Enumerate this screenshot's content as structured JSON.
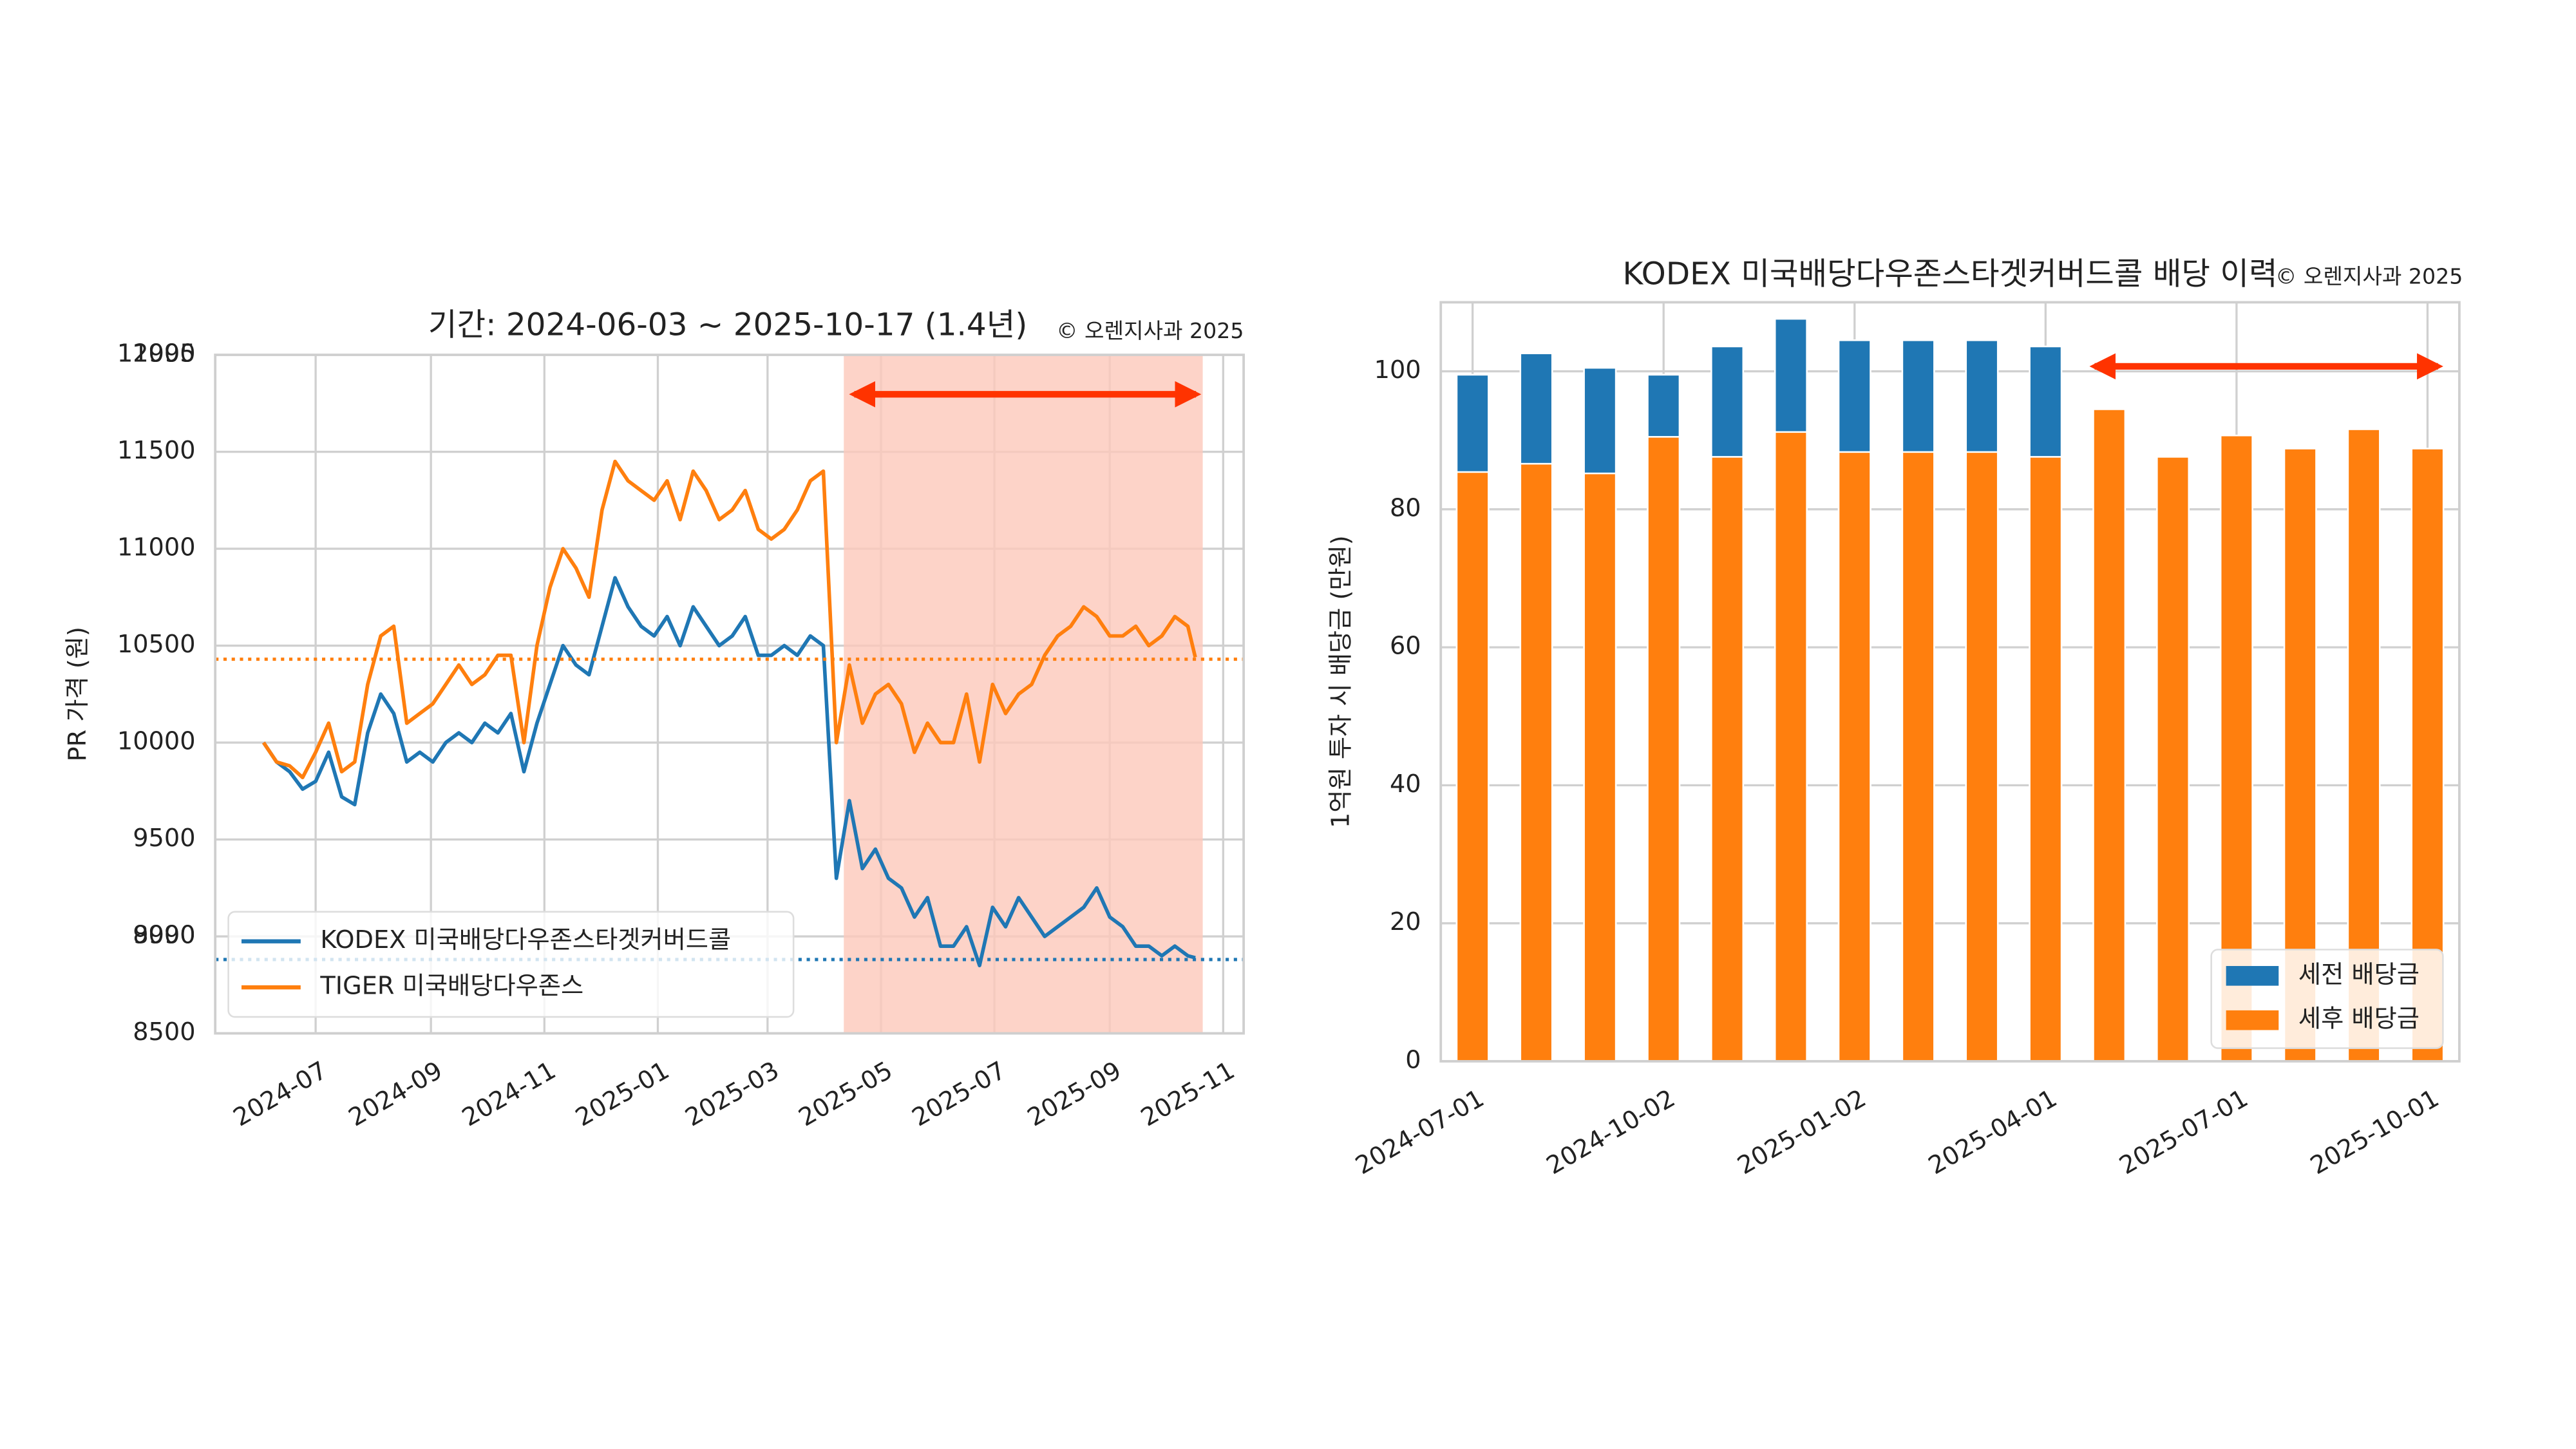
{
  "chart_data": [
    {
      "type": "line",
      "title": "기간: 2024-06-03 ~ 2025-10-17 (1.4년)",
      "annotation": "© 오렌지사과 2025",
      "ylabel": "PR 가격 (원)",
      "x": [
        "2024-06-03",
        "2024-06-10",
        "2024-06-17",
        "2024-06-24",
        "2024-07-01",
        "2024-07-08",
        "2024-07-15",
        "2024-07-22",
        "2024-07-29",
        "2024-08-05",
        "2024-08-12",
        "2024-08-19",
        "2024-08-26",
        "2024-09-02",
        "2024-09-09",
        "2024-09-16",
        "2024-09-23",
        "2024-09-30",
        "2024-10-07",
        "2024-10-14",
        "2024-10-21",
        "2024-10-28",
        "2024-11-04",
        "2024-11-11",
        "2024-11-18",
        "2024-11-25",
        "2024-12-02",
        "2024-12-09",
        "2024-12-16",
        "2024-12-23",
        "2024-12-30",
        "2025-01-06",
        "2025-01-13",
        "2025-01-20",
        "2025-01-27",
        "2025-02-03",
        "2025-02-10",
        "2025-02-17",
        "2025-02-24",
        "2025-03-03",
        "2025-03-10",
        "2025-03-17",
        "2025-03-24",
        "2025-03-31",
        "2025-04-07",
        "2025-04-14",
        "2025-04-21",
        "2025-04-28",
        "2025-05-05",
        "2025-05-12",
        "2025-05-19",
        "2025-05-26",
        "2025-06-02",
        "2025-06-09",
        "2025-06-16",
        "2025-06-23",
        "2025-06-30",
        "2025-07-07",
        "2025-07-14",
        "2025-07-21",
        "2025-07-28",
        "2025-08-04",
        "2025-08-11",
        "2025-08-18",
        "2025-08-25",
        "2025-09-01",
        "2025-09-08",
        "2025-09-15",
        "2025-09-22",
        "2025-09-29",
        "2025-10-06",
        "2025-10-13",
        "2025-10-17"
      ],
      "series": [
        {
          "name": "KODEX 미국배당다우존스타겟커버드콜",
          "color": "#1f77b4",
          "values": [
            10000,
            9900,
            9850,
            9760,
            9800,
            9950,
            9720,
            9680,
            10050,
            10250,
            10150,
            9900,
            9950,
            9900,
            10000,
            10050,
            10000,
            10100,
            10050,
            10150,
            9850,
            10100,
            10300,
            10500,
            10400,
            10350,
            10600,
            10850,
            10700,
            10600,
            10550,
            10650,
            10500,
            10700,
            10600,
            10500,
            10550,
            10650,
            10450,
            10450,
            10500,
            10450,
            10550,
            10500,
            9300,
            9700,
            9350,
            9450,
            9300,
            9250,
            9100,
            9200,
            8950,
            8950,
            9050,
            8850,
            9150,
            9050,
            9200,
            9100,
            9000,
            9050,
            9100,
            9150,
            9250,
            9100,
            9050,
            8950,
            8950,
            8900,
            8950,
            8900,
            8890
          ]
        },
        {
          "name": "TIGER 미국배당다우존스",
          "color": "#ff7f0e",
          "values": [
            10000,
            9900,
            9880,
            9820,
            9950,
            10100,
            9850,
            9900,
            10300,
            10550,
            10600,
            10100,
            10150,
            10200,
            10300,
            10400,
            10300,
            10350,
            10450,
            10450,
            10000,
            10500,
            10800,
            11000,
            10900,
            10750,
            11200,
            11450,
            11350,
            11300,
            11250,
            11350,
            11150,
            11400,
            11300,
            11150,
            11200,
            11300,
            11100,
            11050,
            11100,
            11200,
            11350,
            11400,
            10000,
            10400,
            10100,
            10250,
            10300,
            10200,
            9950,
            10100,
            10000,
            10000,
            10250,
            9900,
            10300,
            10150,
            10250,
            10300,
            10450,
            10550,
            10600,
            10700,
            10650,
            10550,
            10550,
            10600,
            10500,
            10550,
            10650,
            10600,
            10440
          ]
        }
      ],
      "hlines": [
        {
          "value": 10430,
          "color": "#ff7f0e"
        },
        {
          "value": 8881,
          "color": "#1f77b4"
        }
      ],
      "span": {
        "start": "2025-04-11",
        "end": "2025-10-21",
        "color": "#fcc8ba"
      },
      "xlim": [
        "2024-05-08",
        "2025-11-12"
      ],
      "xticks": [
        {
          "value": "2024-07-01",
          "label": "2024-07"
        },
        {
          "value": "2024-09-01",
          "label": "2024-09"
        },
        {
          "value": "2024-11-01",
          "label": "2024-11"
        },
        {
          "value": "2025-01-01",
          "label": "2025-01"
        },
        {
          "value": "2025-03-01",
          "label": "2025-03"
        },
        {
          "value": "2025-05-01",
          "label": "2025-05"
        },
        {
          "value": "2025-07-01",
          "label": "2025-07"
        },
        {
          "value": "2025-09-01",
          "label": "2025-09"
        },
        {
          "value": "2025-11-01",
          "label": "2025-11"
        }
      ],
      "ylim": [
        8500,
        12000
      ],
      "yticks": [
        8500,
        9000,
        9500,
        10000,
        10500,
        11000,
        11500,
        12000
      ],
      "y2lim": [
        8489,
        11995
      ],
      "y2ticks": [
        8990,
        11995
      ],
      "grid": true,
      "legend": "lower left"
    },
    {
      "type": "bar",
      "title": "KODEX 미국배당다우존스타겟커버드콜 배당 이력",
      "annotation": "© 오렌지사과 2025",
      "ylabel": "1억원 투자 시 배당금 (만원)",
      "categories": [
        "2024-07-01",
        null,
        null,
        "2024-10-02",
        null,
        null,
        "2025-01-02",
        null,
        null,
        "2025-04-01",
        null,
        null,
        "2025-07-01",
        null,
        null,
        "2025-10-01"
      ],
      "series": [
        {
          "name": "세전 배당금",
          "color": "#1f77b4",
          "values": [
            99.5,
            102.6,
            100.5,
            99.5,
            103.6,
            107.6,
            104.5,
            104.5,
            104.5,
            103.6,
            null,
            null,
            null,
            null,
            null,
            null
          ]
        },
        {
          "name": "세후 배당금",
          "color": "#ff7f0e",
          "values": [
            85.4,
            86.6,
            85.2,
            90.5,
            87.6,
            91.2,
            88.3,
            88.3,
            88.3,
            87.6,
            94.5,
            87.6,
            90.7,
            88.8,
            91.6,
            88.8
          ]
        }
      ],
      "stacked": false,
      "ylim": [
        0,
        110
      ],
      "yticks": [
        0,
        20,
        40,
        60,
        80,
        100
      ],
      "grid": true,
      "legend": "lower right"
    }
  ]
}
